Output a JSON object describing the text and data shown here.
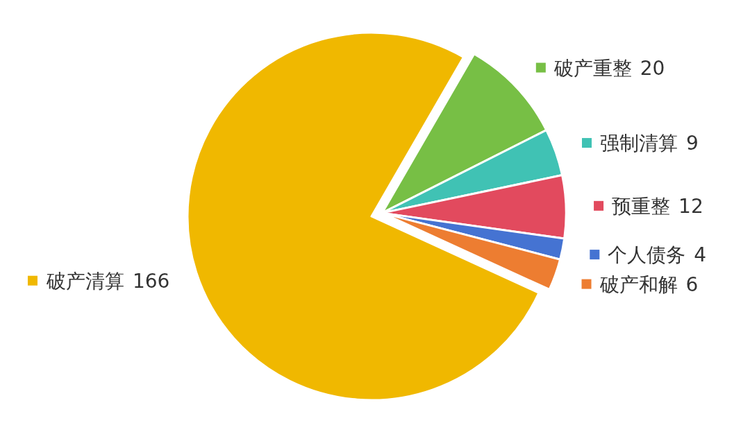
{
  "chart_data": {
    "type": "pie",
    "categories": [
      "破产重整",
      "强制清算",
      "预重整",
      "个人债务",
      "破产和解",
      "破产清算"
    ],
    "values": [
      20,
      9,
      12,
      4,
      6,
      166
    ],
    "colors": [
      "#77bf45",
      "#40c2b4",
      "#e24a5e",
      "#4573d2",
      "#ed7d31",
      "#f0b800"
    ],
    "data_labels": true,
    "legend": "top left"
  }
}
